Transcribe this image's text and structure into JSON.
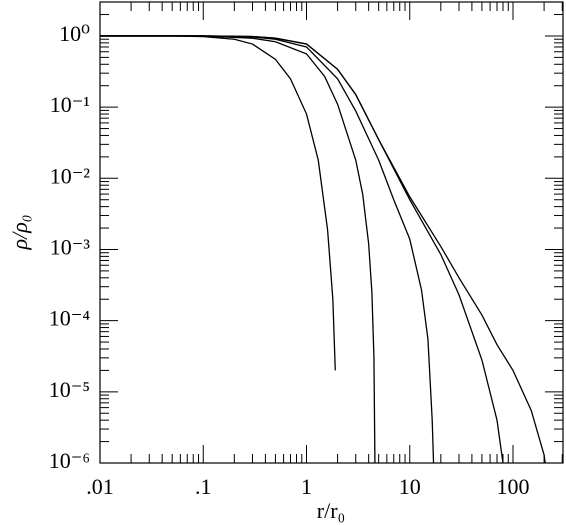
{
  "chart_data": {
    "type": "line",
    "xlabel": "r/r₀",
    "ylabel": "ρ/ρ₀",
    "xscale": "log",
    "yscale": "log",
    "xlim": [
      0.01,
      305
    ],
    "ylim": [
      1e-06,
      3
    ],
    "xticks": [
      {
        "value": 0.01,
        "label": ".01"
      },
      {
        "value": 0.1,
        "label": ".1"
      },
      1,
      10,
      100
    ],
    "yticks": [
      {
        "value": 1,
        "label": "10⁰"
      },
      {
        "value": 0.1,
        "label": "10⁻¹"
      },
      {
        "value": 0.01,
        "label": "10⁻²"
      },
      {
        "value": 0.001,
        "label": "10⁻³"
      },
      {
        "value": 0.0001,
        "label": "10⁻⁴"
      },
      {
        "value": 1e-05,
        "label": "10⁻⁵"
      },
      {
        "value": 1e-06,
        "label": "10⁻⁶"
      }
    ],
    "series": [
      {
        "color": "#000000",
        "x": [
          0.01,
          0.05,
          0.1,
          0.2,
          0.3,
          0.5,
          0.7,
          1,
          1.3,
          1.6,
          1.8,
          1.9
        ],
        "values": [
          1,
          1,
          0.98,
          0.9,
          0.77,
          0.47,
          0.25,
          0.08,
          0.018,
          0.0019,
          0.0002,
          2e-05
        ]
      },
      {
        "color": "#000000",
        "x": [
          0.01,
          0.1,
          0.3,
          0.5,
          1,
          1.5,
          2,
          3,
          3.5,
          4,
          4.3,
          4.5,
          4.6
        ],
        "values": [
          1,
          1,
          0.93,
          0.83,
          0.56,
          0.27,
          0.11,
          0.018,
          0.006,
          0.0012,
          0.00025,
          3e-05,
          1e-06
        ]
      },
      {
        "color": "#000000",
        "x": [
          0.01,
          0.1,
          0.3,
          0.5,
          1,
          2,
          3,
          5,
          7,
          10,
          13,
          15,
          16.5,
          17
        ],
        "values": [
          1,
          1,
          0.97,
          0.9,
          0.7,
          0.25,
          0.088,
          0.018,
          0.005,
          0.0014,
          0.00027,
          5.5e-05,
          4e-06,
          1e-06
        ]
      },
      {
        "color": "#000000",
        "x": [
          0.01,
          0.1,
          0.3,
          0.5,
          1,
          2,
          3,
          5,
          10,
          20,
          30,
          50,
          70,
          80
        ],
        "values": [
          1,
          1,
          0.98,
          0.93,
          0.77,
          0.34,
          0.15,
          0.035,
          0.005,
          0.00085,
          0.00023,
          2.8e-05,
          4e-06,
          1e-06
        ]
      },
      {
        "color": "#000000",
        "x": [
          0.01,
          0.1,
          0.3,
          0.5,
          1,
          2,
          3,
          5,
          10,
          20,
          30,
          50,
          70,
          100,
          150,
          200,
          205
        ],
        "values": [
          1,
          1,
          0.98,
          0.93,
          0.77,
          0.34,
          0.15,
          0.035,
          0.0055,
          0.0011,
          0.0004,
          0.00012,
          4.6e-05,
          2e-05,
          5.5e-06,
          1.3e-06,
          1e-06
        ]
      }
    ]
  }
}
